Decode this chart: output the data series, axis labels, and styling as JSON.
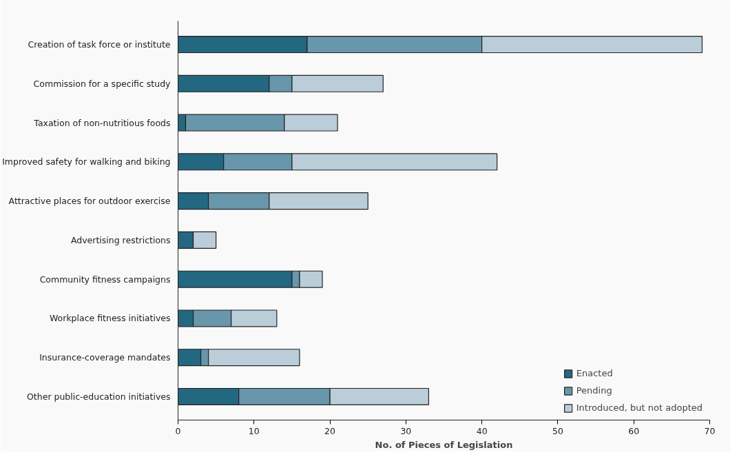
{
  "chart_data": {
    "type": "bar",
    "orientation": "horizontal",
    "stacked": true,
    "categories": [
      "Creation of task force or institute",
      "Commission for a specific study",
      "Taxation of non-nutritious foods",
      "Improved safety for walking and biking",
      "Attractive places for outdoor exercise",
      "Advertising restrictions",
      "Community fitness campaigns",
      "Workplace fitness initiatives",
      "Insurance-coverage mandates",
      "Other public-education initiatives"
    ],
    "series": [
      {
        "name": "Enacted",
        "color": "#236880",
        "values": [
          17,
          12,
          1,
          6,
          4,
          2,
          15,
          2,
          3,
          8
        ]
      },
      {
        "name": "Pending",
        "color": "#6896ab",
        "values": [
          23,
          3,
          13,
          9,
          8,
          0,
          1,
          5,
          1,
          12
        ]
      },
      {
        "name": "Introduced, but not adopted",
        "color": "#bacdd8",
        "values": [
          29,
          12,
          7,
          27,
          13,
          3,
          3,
          6,
          12,
          13
        ]
      }
    ],
    "xlim": [
      0,
      70
    ],
    "xticks": [
      0,
      10,
      20,
      30,
      40,
      50,
      60,
      70
    ],
    "xlabel": "No. of Pieces of Legislation",
    "grid": false,
    "legend": "bottom right"
  }
}
